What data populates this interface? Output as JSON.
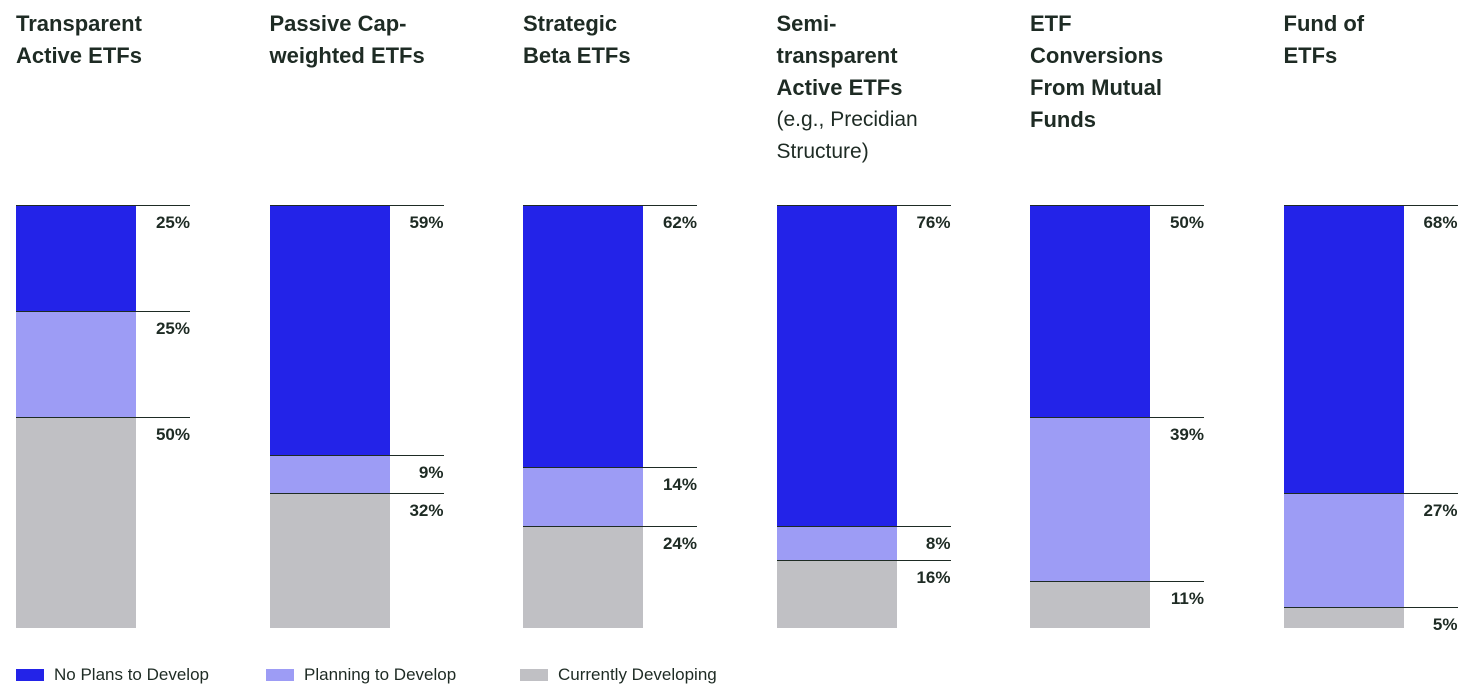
{
  "chart_data": {
    "type": "stacked-column",
    "categories": [
      "Transparent Active ETFs",
      "Passive Cap-weighted ETFs",
      "Strategic Beta ETFs",
      "Semi-transparent Active ETFs",
      "ETF Conversions From Mutual Funds",
      "Fund of ETFs"
    ],
    "category_notes": [
      null,
      null,
      null,
      "(e.g., Precidian Structure)",
      null,
      null
    ],
    "ylim": [
      0,
      100
    ],
    "series": [
      {
        "name": "No Plans to Develop",
        "color": "#2323e8",
        "values": [
          25,
          59,
          62,
          76,
          50,
          68
        ],
        "value_labels": [
          "25%",
          "59%",
          "62%",
          "76%",
          "50%",
          "68%"
        ]
      },
      {
        "name": "Planning to Develop",
        "color": "#9d9cf5",
        "values": [
          25,
          9,
          14,
          8,
          39,
          27
        ],
        "value_labels": [
          "25%",
          "9%",
          "14%",
          "8%",
          "39%",
          "27%"
        ]
      },
      {
        "name": "Currently Developing",
        "color": "#c0c0c4",
        "values": [
          50,
          32,
          24,
          16,
          11,
          5
        ],
        "value_labels": [
          "50%",
          "32%",
          "24%",
          "16%",
          "11%",
          "5%"
        ]
      }
    ]
  }
}
